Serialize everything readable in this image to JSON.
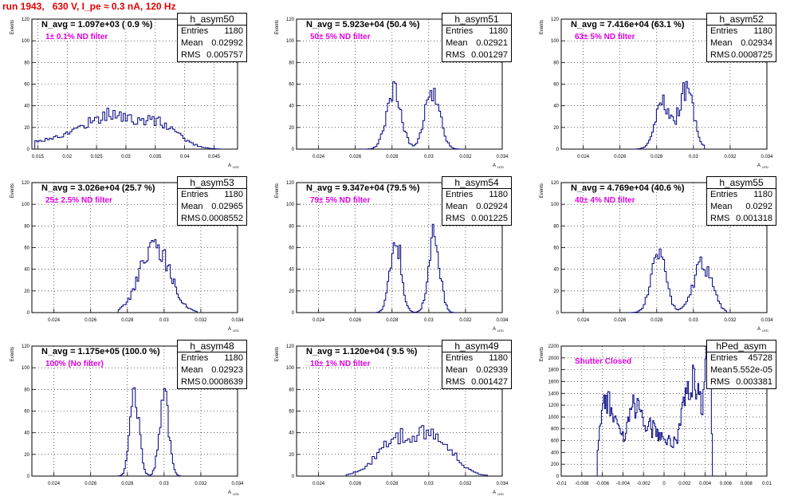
{
  "page_title": "run 1943,   630 V, I_pe ≈ 0.3 nA, 120 Hz",
  "colors": {
    "line": "#00007f",
    "title": "#e00000",
    "annotation": "#e000e0"
  },
  "chart_data": [
    {
      "type": "histogram",
      "hist_name": "h_asym50",
      "n_avg": "N_avg = 1.097e+03 ( 0.9 %)",
      "filter": "1± 0.1% ND filter",
      "ylabel": "Events",
      "xlabel": "A",
      "xlabel_sub": "LED",
      "xlim": [
        0.014,
        0.049
      ],
      "ylim": [
        0,
        120
      ],
      "xticks": [
        0.015,
        0.02,
        0.025,
        0.03,
        0.035,
        0.04,
        0.045
      ],
      "xtick_labels": [
        "0.015",
        "0.02",
        "0.025",
        "0.03",
        "0.035",
        "0.04",
        "0.045"
      ],
      "yticks": [
        0,
        20,
        40,
        60,
        80,
        100,
        120
      ],
      "ytick_labels": [
        "0",
        "20",
        "40",
        "60",
        "80",
        "100",
        "120"
      ],
      "stats": {
        "Entries": "1180",
        "Mean": "0.02992",
        "RMS": "0.005757"
      },
      "shape": [
        [
          0.0195,
          10,
          0.006
        ],
        [
          0.025,
          18,
          0.003
        ],
        [
          0.0285,
          14,
          0.002
        ],
        [
          0.033,
          18,
          0.003
        ],
        [
          0.037,
          14,
          0.003
        ]
      ],
      "bin_lo": 0.0145,
      "bin_hi": 0.046,
      "nbins": 90
    },
    {
      "type": "histogram",
      "hist_name": "h_asym51",
      "n_avg": "N_avg = 5.923e+04 (50.4 %)",
      "filter": "50± 5% ND filter",
      "ylabel": "Events",
      "xlabel": "A",
      "xlabel_sub": "LED",
      "xlim": [
        0.0228,
        0.034
      ],
      "ylim": [
        0,
        120
      ],
      "xticks": [
        0.024,
        0.026,
        0.028,
        0.03,
        0.032,
        0.034
      ],
      "xtick_labels": [
        "0.024",
        "0.026",
        "0.028",
        "0.03",
        "0.032",
        "0.034"
      ],
      "yticks": [
        0,
        20,
        40,
        60,
        80,
        100,
        120
      ],
      "ytick_labels": [
        "0",
        "20",
        "40",
        "60",
        "80",
        "100",
        "120"
      ],
      "stats": {
        "Entries": "1180",
        "Mean": "0.02921",
        "RMS": "0.001297"
      },
      "shape": [
        [
          0.0281,
          55,
          0.0004
        ],
        [
          0.0302,
          55,
          0.0004
        ]
      ],
      "bin_lo": 0.0265,
      "bin_hi": 0.0318,
      "nbins": 55
    },
    {
      "type": "histogram",
      "hist_name": "h_asym52",
      "n_avg": "N_avg = 7.416e+04 (63.1 %)",
      "filter": "63± 5% ND filter",
      "ylabel": "Events",
      "xlabel": "A",
      "xlabel_sub": "LED",
      "xlim": [
        0.0228,
        0.034
      ],
      "ylim": [
        0,
        120
      ],
      "xticks": [
        0.024,
        0.026,
        0.028,
        0.03,
        0.032,
        0.034
      ],
      "xtick_labels": [
        "0.024",
        "0.026",
        "0.028",
        "0.03",
        "0.032",
        "0.034"
      ],
      "yticks": [
        0,
        20,
        40,
        60,
        80,
        100,
        120
      ],
      "ytick_labels": [
        "0",
        "20",
        "40",
        "60",
        "80",
        "100",
        "120"
      ],
      "stats": {
        "Entries": "1180",
        "Mean": "0.02934",
        "RMS": "0.0008725"
      },
      "shape": [
        [
          0.0283,
          42,
          0.0004
        ],
        [
          0.0296,
          55,
          0.0004
        ]
      ],
      "bin_lo": 0.0268,
      "bin_hi": 0.0306,
      "nbins": 45
    },
    {
      "type": "histogram",
      "hist_name": "h_asym53",
      "n_avg": "N_avg = 3.026e+04 (25.7 %)",
      "filter": "25± 2.5% ND filter",
      "ylabel": "Events",
      "xlabel": "A",
      "xlabel_sub": "LED",
      "xlim": [
        0.0228,
        0.034
      ],
      "ylim": [
        0,
        120
      ],
      "xticks": [
        0.024,
        0.026,
        0.028,
        0.03,
        0.032,
        0.034
      ],
      "xtick_labels": [
        "0.024",
        "0.026",
        "0.028",
        "0.03",
        "0.032",
        "0.034"
      ],
      "yticks": [
        0,
        20,
        40,
        60,
        80,
        100,
        120
      ],
      "ytick_labels": [
        "0",
        "20",
        "40",
        "60",
        "80",
        "100",
        "120"
      ],
      "stats": {
        "Entries": "1180",
        "Mean": "0.02965",
        "RMS": "0.0008552"
      },
      "shape": [
        [
          0.0295,
          62,
          0.0008
        ]
      ],
      "bin_lo": 0.0275,
      "bin_hi": 0.0318,
      "nbins": 50
    },
    {
      "type": "histogram",
      "hist_name": "h_asym54",
      "n_avg": "N_avg = 9.347e+04 (79.5 %)",
      "filter": "79± 5% ND filter",
      "ylabel": "Events",
      "xlabel": "A",
      "xlabel_sub": "LED",
      "xlim": [
        0.0228,
        0.034
      ],
      "ylim": [
        0,
        120
      ],
      "xticks": [
        0.024,
        0.026,
        0.028,
        0.03,
        0.032,
        0.034
      ],
      "xtick_labels": [
        "0.024",
        "0.026",
        "0.028",
        "0.03",
        "0.032",
        "0.034"
      ],
      "yticks": [
        0,
        20,
        40,
        60,
        80,
        100,
        120
      ],
      "ytick_labels": [
        "0",
        "20",
        "40",
        "60",
        "80",
        "100",
        "120"
      ],
      "stats": {
        "Entries": "1180",
        "Mean": "0.02924",
        "RMS": "0.001225"
      },
      "shape": [
        [
          0.0282,
          70,
          0.0003
        ],
        [
          0.0303,
          72,
          0.0003
        ]
      ],
      "bin_lo": 0.027,
      "bin_hi": 0.0315,
      "nbins": 55
    },
    {
      "type": "histogram",
      "hist_name": "h_asym55",
      "n_avg": "N_avg = 4.769e+04 (40.6 %)",
      "filter": "40± 4% ND filter",
      "ylabel": "Events",
      "xlabel": "A",
      "xlabel_sub": "LED",
      "xlim": [
        0.0228,
        0.034
      ],
      "ylim": [
        0,
        120
      ],
      "xticks": [
        0.024,
        0.026,
        0.028,
        0.03,
        0.032,
        0.034
      ],
      "xtick_labels": [
        "0.024",
        "0.026",
        "0.028",
        "0.03",
        "0.032",
        "0.034"
      ],
      "yticks": [
        0,
        20,
        40,
        60,
        80,
        100,
        120
      ],
      "ytick_labels": [
        "0",
        "20",
        "40",
        "60",
        "80",
        "100",
        "120"
      ],
      "stats": {
        "Entries": "1180",
        "Mean": "0.0292",
        "RMS": "0.001318"
      },
      "shape": [
        [
          0.0281,
          55,
          0.0004
        ],
        [
          0.0305,
          45,
          0.0005
        ]
      ],
      "bin_lo": 0.0265,
      "bin_hi": 0.0318,
      "nbins": 55
    },
    {
      "type": "histogram",
      "hist_name": "h_asym48",
      "n_avg": "N_avg = 1.175e+05 (100.0 %)",
      "filter": "100% (No filter)",
      "ylabel": "Events",
      "xlabel": "A",
      "xlabel_sub": "LED",
      "xlim": [
        0.0228,
        0.034
      ],
      "ylim": [
        0,
        120
      ],
      "xticks": [
        0.024,
        0.026,
        0.028,
        0.03,
        0.032,
        0.034
      ],
      "xtick_labels": [
        "0.024",
        "0.026",
        "0.028",
        "0.03",
        "0.032",
        "0.034"
      ],
      "yticks": [
        0,
        20,
        40,
        60,
        80,
        100,
        120
      ],
      "ytick_labels": [
        "0",
        "20",
        "40",
        "60",
        "80",
        "100",
        "120"
      ],
      "stats": {
        "Entries": "1180",
        "Mean": "0.02923",
        "RMS": "0.0008639"
      },
      "shape": [
        [
          0.0284,
          72,
          0.00025
        ],
        [
          0.03,
          72,
          0.00025
        ]
      ],
      "bin_lo": 0.0275,
      "bin_hi": 0.031,
      "nbins": 45
    },
    {
      "type": "histogram",
      "hist_name": "h_asym49",
      "n_avg": "N_avg = 1.120e+04 ( 9.5 %)",
      "filter": "10± 1% ND filter",
      "ylabel": "Events",
      "xlabel": "A",
      "xlabel_sub": "LED",
      "xlim": [
        0.0228,
        0.034
      ],
      "ylim": [
        0,
        120
      ],
      "xticks": [
        0.024,
        0.026,
        0.028,
        0.03,
        0.032,
        0.034
      ],
      "xtick_labels": [
        "0.024",
        "0.026",
        "0.028",
        "0.03",
        "0.032",
        "0.034"
      ],
      "yticks": [
        0,
        20,
        40,
        60,
        80,
        100,
        120
      ],
      "ytick_labels": [
        "0",
        "20",
        "40",
        "60",
        "80",
        "100",
        "120"
      ],
      "stats": {
        "Entries": "1180",
        "Mean": "0.02939",
        "RMS": "0.001427"
      },
      "shape": [
        [
          0.0283,
          32,
          0.0011
        ],
        [
          0.0304,
          32,
          0.001
        ]
      ],
      "bin_lo": 0.0255,
      "bin_hi": 0.0332,
      "nbins": 60
    },
    {
      "type": "histogram",
      "hist_name": "hPed_asym",
      "n_avg": "",
      "filter": "Shutter Closed",
      "ylabel": "Events",
      "xlabel": "",
      "xlabel_sub": "",
      "xlim": [
        -0.01,
        0.01
      ],
      "ylim": [
        0,
        2200
      ],
      "xticks": [
        -0.01,
        -0.008,
        -0.006,
        -0.004,
        -0.002,
        0,
        0.002,
        0.004,
        0.006,
        0.008,
        0.01
      ],
      "xtick_labels": [
        "-0.01",
        "-0.008",
        "-0.006",
        "-0.004",
        "-0.002",
        "0",
        "0.002",
        "0.004",
        "0.006",
        "0.008",
        "0.01"
      ],
      "yticks": [
        0,
        200,
        400,
        600,
        800,
        1000,
        1200,
        1400,
        1600,
        1800,
        2000,
        2200
      ],
      "ytick_labels": [
        "0",
        "200",
        "400",
        "600",
        "800",
        "1000",
        "1200",
        "1400",
        "1600",
        "1800",
        "2000",
        "2200"
      ],
      "stats": {
        "Entries": "45728",
        "Mean": "5.552e-05",
        "RMS": "0.003381"
      },
      "shape": [
        [
          -0.0057,
          1000,
          0.0006
        ],
        [
          -0.0045,
          600,
          0.0009
        ],
        [
          -0.0029,
          850,
          0.0006
        ],
        [
          -0.0015,
          750,
          0.0009
        ],
        [
          0.0005,
          500,
          0.0009
        ],
        [
          0.0022,
          1050,
          0.0006
        ],
        [
          0.0033,
          1350,
          0.0006
        ],
        [
          0.0043,
          1850,
          0.00025
        ]
      ],
      "bin_lo": -0.0065,
      "bin_hi": 0.0047,
      "nbins": 110
    }
  ]
}
